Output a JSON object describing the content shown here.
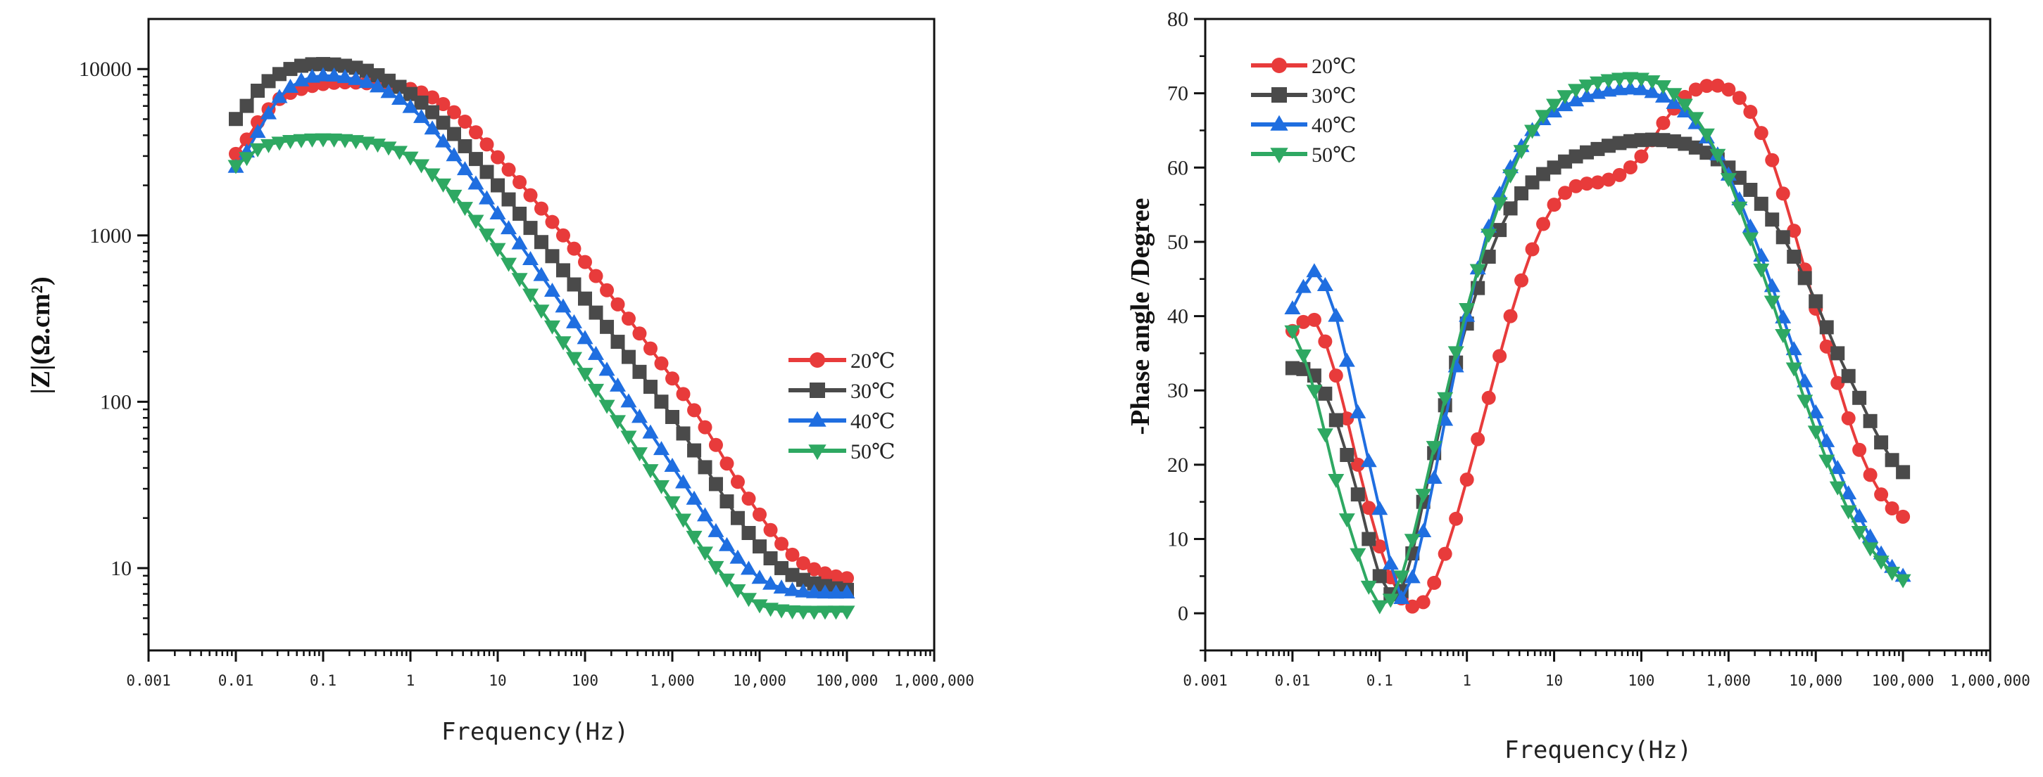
{
  "colors": {
    "20C": "#e83b3b",
    "30C": "#4a4a4a",
    "40C": "#1f6ee0",
    "50C": "#2ea862",
    "axis": "#111111"
  },
  "chart_data": [
    {
      "type": "scatter",
      "title": "",
      "xlabel": "Frequency(Hz)",
      "ylabel": "|Z|(Ω.cm²)",
      "xscale": "log",
      "yscale": "log",
      "xlim": [
        0.001,
        1000000
      ],
      "ylim": [
        3.2,
        20000
      ],
      "xticks": [
        0.001,
        0.01,
        0.1,
        1,
        10,
        100,
        1000,
        10000,
        100000,
        1000000
      ],
      "xtick_labels": [
        "0.001",
        "0.01",
        "0.1",
        "1",
        "10",
        "100",
        "1,000",
        "10,000",
        "100,000",
        "1,000,000"
      ],
      "yticks": [
        10,
        100,
        1000,
        10000
      ],
      "ytick_labels": [
        "10",
        "100",
        "1000",
        "10000"
      ],
      "legend": "right-middle",
      "grid": false,
      "x": [
        0.01,
        0.0178,
        0.0316,
        0.0562,
        0.1,
        0.178,
        0.316,
        0.562,
        1,
        1.78,
        3.16,
        5.62,
        10,
        17.8,
        31.6,
        56.2,
        100,
        178,
        316,
        562,
        1000,
        1780,
        3160,
        5620,
        10000,
        17800,
        31600,
        56200,
        100000
      ],
      "series": [
        {
          "name": "20℃",
          "marker": "circle",
          "color_key": "20C",
          "values": [
            3090,
            4790,
            6610,
            7590,
            8130,
            8320,
            8220,
            7940,
            7590,
            6760,
            5500,
            4170,
            2950,
            2090,
            1450,
            1000,
            692,
            468,
            316,
            209,
            138,
            89,
            55,
            33,
            21,
            14,
            10.7,
            9.3,
            8.7
          ]
        },
        {
          "name": "30℃",
          "marker": "square",
          "color_key": "30C",
          "values": [
            5010,
            7410,
            9330,
            10470,
            10720,
            10470,
            9770,
            8510,
            7080,
            5500,
            4070,
            2880,
            2000,
            1350,
            912,
            617,
            417,
            282,
            186,
            123,
            81,
            51,
            32,
            20,
            13.5,
            10,
            8.5,
            7.8,
            7.4
          ]
        },
        {
          "name": "40℃",
          "marker": "triangle-up",
          "color_key": "40C",
          "values": [
            2570,
            4170,
            6760,
            8510,
            9120,
            8910,
            8320,
            7240,
            5890,
            4370,
            3020,
            2040,
            1350,
            891,
            575,
            372,
            240,
            155,
            100,
            65,
            41,
            26,
            16.6,
            11.5,
            8.7,
            7.6,
            7.2,
            7.1,
            7.1
          ]
        },
        {
          "name": "50℃",
          "marker": "triangle-down",
          "color_key": "50C",
          "values": [
            2630,
            3310,
            3630,
            3760,
            3800,
            3760,
            3630,
            3390,
            2950,
            2340,
            1740,
            1230,
            832,
            550,
            355,
            229,
            148,
            95,
            62,
            39,
            25,
            15.5,
            10.2,
            7.4,
            6.0,
            5.6,
            5.5,
            5.5,
            5.5
          ]
        }
      ]
    },
    {
      "type": "scatter",
      "title": "",
      "xlabel": "Frequency(Hz)",
      "ylabel": "-Phase angle /Degree",
      "xscale": "log",
      "yscale": "linear",
      "xlim": [
        0.001,
        1000000
      ],
      "ylim": [
        -5,
        80
      ],
      "xticks": [
        0.001,
        0.01,
        0.1,
        1,
        10,
        100,
        1000,
        10000,
        100000,
        1000000
      ],
      "xtick_labels": [
        "0.001",
        "0.01",
        "0.1",
        "1",
        "10",
        "100",
        "1,000",
        "10,000",
        "100,000",
        "1,000,000"
      ],
      "yticks": [
        0,
        10,
        20,
        30,
        40,
        50,
        60,
        70,
        80
      ],
      "ytick_labels": [
        "0",
        "10",
        "20",
        "30",
        "40",
        "50",
        "60",
        "70",
        "80"
      ],
      "legend": "top-left",
      "grid": false,
      "x": [
        0.01,
        0.0178,
        0.0316,
        0.0562,
        0.1,
        0.178,
        0.316,
        0.562,
        1,
        1.78,
        3.16,
        5.62,
        10,
        17.8,
        31.6,
        56.2,
        100,
        178,
        316,
        562,
        1000,
        1780,
        3160,
        5620,
        10000,
        17800,
        31600,
        56200,
        100000
      ],
      "series": [
        {
          "name": "20℃",
          "marker": "circle",
          "color_key": "20C",
          "values": [
            38,
            39.5,
            32,
            20,
            9,
            2,
            1.5,
            8,
            18,
            29,
            40,
            49,
            55,
            57.5,
            58,
            59,
            61.5,
            66,
            69.5,
            71,
            70.5,
            67.5,
            61,
            51.5,
            41,
            31,
            22,
            16,
            13
          ]
        },
        {
          "name": "30℃",
          "marker": "square",
          "color_key": "30C",
          "values": [
            33,
            32,
            26,
            16,
            5,
            3,
            15,
            28,
            39,
            48,
            54.5,
            58,
            60,
            61.5,
            62.5,
            63.3,
            63.7,
            63.7,
            63.2,
            62,
            60,
            57,
            53,
            48,
            42,
            35,
            29,
            23,
            19
          ]
        },
        {
          "name": "40℃",
          "marker": "triangle-up",
          "color_key": "40C",
          "values": [
            41,
            46,
            40,
            27,
            14,
            2,
            11,
            26,
            40,
            52,
            60,
            65,
            67.5,
            69,
            70,
            70.5,
            70.5,
            69.5,
            67.5,
            64,
            59,
            52,
            44,
            35.5,
            27,
            19.5,
            13,
            8,
            5
          ]
        },
        {
          "name": "50℃",
          "marker": "triangle-down",
          "color_key": "50C",
          "values": [
            38,
            30,
            18,
            8,
            1,
            5,
            16,
            29,
            41,
            51,
            59,
            65,
            68.5,
            70.5,
            71.5,
            72,
            72,
            71,
            68.5,
            64.5,
            58.5,
            50.5,
            42,
            33,
            24.5,
            17,
            11,
            7,
            4.5
          ]
        }
      ]
    }
  ]
}
